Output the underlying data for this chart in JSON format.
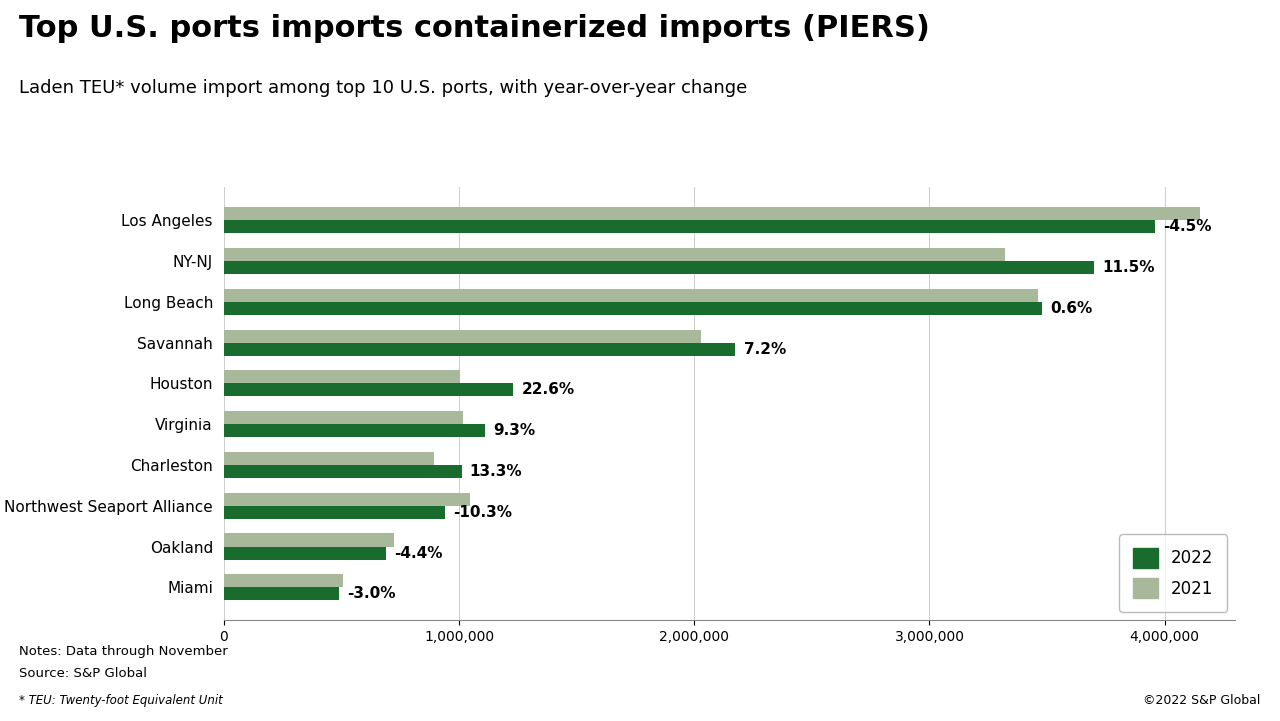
{
  "title": "Top U.S. ports imports containerized imports (PIERS)",
  "subtitle": "Laden TEU* volume import among top 10 U.S. ports, with year-over-year change",
  "ports": [
    "Los Angeles",
    "NY-NJ",
    "Long Beach",
    "Savannah",
    "Houston",
    "Virginia",
    "Charleston",
    "Northwest Seaport Alliance",
    "Oakland",
    "Miami"
  ],
  "values_2022": [
    3960000,
    3700000,
    3480000,
    2175000,
    1230000,
    1110000,
    1010000,
    940000,
    690000,
    490000
  ],
  "values_2021": [
    4150000,
    3320000,
    3460000,
    2030000,
    1003000,
    1015000,
    892000,
    1048000,
    722000,
    505000
  ],
  "changes": [
    "-4.5%",
    "11.5%",
    "0.6%",
    "7.2%",
    "22.6%",
    "9.3%",
    "13.3%",
    "-10.3%",
    "-4.4%",
    "-3.0%"
  ],
  "color_2022": "#1a6b2e",
  "color_2021": "#a8b89a",
  "background_color": "#ffffff",
  "notes_line1": "Notes: Data through November",
  "notes_line2": "Source: S&P Global",
  "footnote": "* TEU: Twenty-foot Equivalent Unit",
  "copyright": "©2022 S&P Global",
  "xlim": [
    0,
    4300000
  ],
  "xticks": [
    0,
    1000000,
    2000000,
    3000000,
    4000000
  ],
  "title_fontsize": 22,
  "subtitle_fontsize": 13,
  "bar_height": 0.32,
  "change_fontsize": 11,
  "ytick_fontsize": 11,
  "xtick_fontsize": 10
}
